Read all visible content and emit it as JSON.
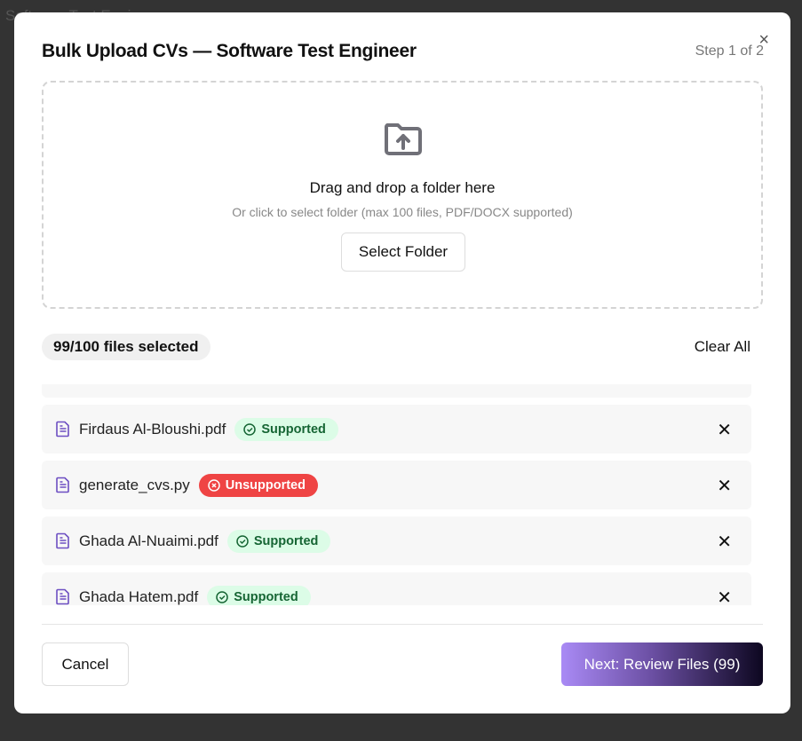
{
  "background": {
    "page_title": "Software Test Engineer"
  },
  "modal": {
    "title": "Bulk Upload CVs — Software Test Engineer",
    "step": "Step 1 of 2",
    "close_label": "×",
    "dropzone": {
      "icon": "folder-upload-icon",
      "heading": "Drag and drop a folder here",
      "subtext": "Or click to select folder (max 100 files, PDF/DOCX supported)",
      "button": "Select Folder"
    },
    "selected_count": "99/100 files selected",
    "clear_all": "Clear All",
    "files": [
      {
        "name": "Firdaus Al-Bloushi.pdf",
        "status": "Supported",
        "supported": true
      },
      {
        "name": "generate_cvs.py",
        "status": "Unsupported",
        "supported": false
      },
      {
        "name": "Ghada Al-Nuaimi.pdf",
        "status": "Supported",
        "supported": true
      },
      {
        "name": "Ghada Hatem.pdf",
        "status": "Supported",
        "supported": true
      }
    ],
    "cancel": "Cancel",
    "next": "Next: Review Files (99)"
  },
  "colors": {
    "supported_bg": "#dcfce7",
    "supported_text": "#166534",
    "unsupported_bg": "#ef4444",
    "file_icon": "#6d4fc2"
  }
}
